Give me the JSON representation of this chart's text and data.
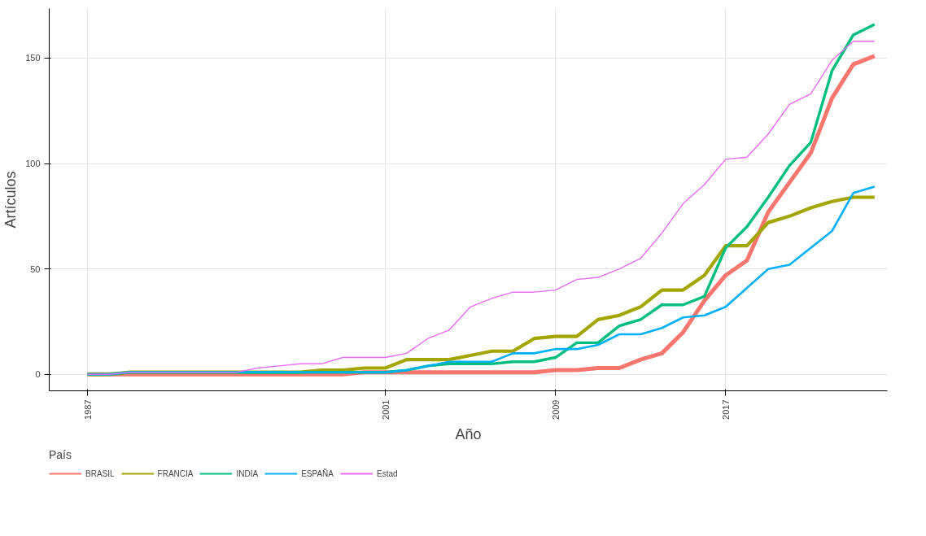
{
  "chart_data": {
    "type": "line",
    "xlabel": "Año",
    "ylabel": "Artículos",
    "legend_title": "País",
    "legend": "bottom",
    "grid": true,
    "line_style": "solid",
    "x": [
      1987,
      1988,
      1989,
      1990,
      1991,
      1992,
      1993,
      1994,
      1995,
      1996,
      1997,
      1998,
      1999,
      2000,
      2001,
      2002,
      2003,
      2004,
      2005,
      2006,
      2007,
      2008,
      2009,
      2010,
      2011,
      2012,
      2013,
      2014,
      2015,
      2016,
      2017,
      2018,
      2019,
      2020,
      2021,
      2022,
      2023,
      2024
    ],
    "xlim": [
      1985.2,
      2024.6
    ],
    "xticks": [
      1987,
      2001,
      2009,
      2017
    ],
    "ylim": [
      -7.8,
      173.5
    ],
    "yticks": [
      0,
      50,
      100,
      150
    ],
    "series": [
      {
        "name": "BRASIL",
        "color": "#f8766d",
        "values": [
          0,
          0,
          0,
          0,
          0,
          0,
          0,
          0,
          0,
          0,
          0,
          0,
          0,
          1,
          1,
          1,
          1,
          1,
          1,
          1,
          1,
          1,
          2,
          2,
          3,
          3,
          7,
          10,
          20,
          35,
          47,
          54,
          77,
          91,
          105,
          131,
          147,
          151
        ]
      },
      {
        "name": "FRANCIA",
        "color": "#a3a500",
        "values": [
          0,
          0,
          1,
          1,
          1,
          1,
          1,
          1,
          1,
          1,
          1,
          2,
          2,
          3,
          3,
          7,
          7,
          7,
          9,
          11,
          11,
          17,
          18,
          18,
          26,
          28,
          32,
          40,
          40,
          47,
          61,
          61,
          72,
          75,
          79,
          82,
          84,
          84
        ]
      },
      {
        "name": "INDIA",
        "color": "#00bf7d",
        "values": [
          0,
          0,
          1,
          1,
          1,
          1,
          1,
          1,
          1,
          1,
          1,
          1,
          1,
          1,
          1,
          2,
          4,
          5,
          5,
          5,
          6,
          6,
          8,
          15,
          15,
          23,
          26,
          33,
          33,
          37,
          60,
          70,
          84,
          99,
          110,
          144,
          161,
          166
        ]
      },
      {
        "name": "ESPAÑA",
        "color": "#00b0f6",
        "values": [
          0,
          0,
          1,
          1,
          1,
          1,
          1,
          1,
          1,
          1,
          1,
          1,
          1,
          1,
          1,
          2,
          4,
          6,
          6,
          6,
          10,
          10,
          12,
          12,
          14,
          19,
          19,
          22,
          27,
          28,
          32,
          41,
          50,
          52,
          60,
          68,
          86,
          89
        ]
      },
      {
        "name": "Estad",
        "color": "#e76bf3",
        "values": [
          0,
          0,
          1,
          1,
          1,
          1,
          1,
          1,
          3,
          4,
          5,
          5,
          8,
          8,
          8,
          10,
          17,
          21,
          32,
          36,
          39,
          39,
          40,
          45,
          46,
          50,
          55,
          67,
          81,
          90,
          102,
          103,
          114,
          128,
          133,
          149,
          158,
          158
        ]
      }
    ]
  }
}
